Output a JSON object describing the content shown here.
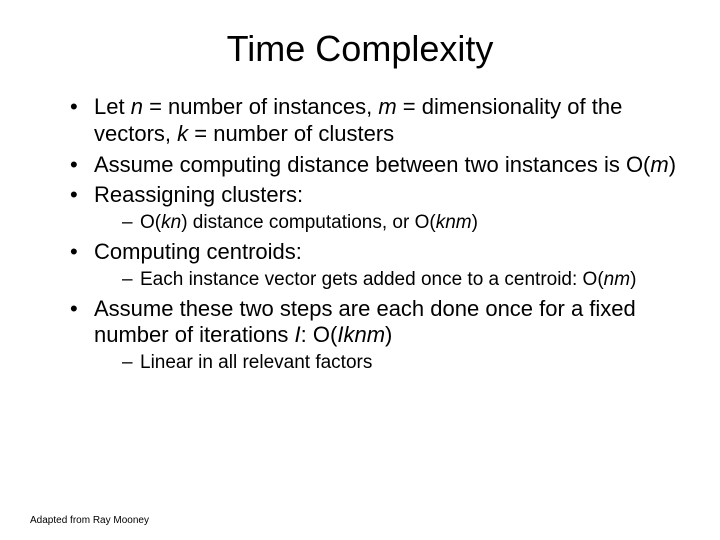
{
  "title": "Time Complexity",
  "bullets": [
    {
      "html": "Let <span class='italic'>n</span> = number of instances, <span class='italic'>m</span> = dimensionality of the vectors, <span class='italic'>k</span> = number of clusters"
    },
    {
      "html": "Assume computing distance between two instances is O(<span class='italic'>m</span>)"
    },
    {
      "html": "Reassigning clusters:",
      "sub": [
        {
          "html": "O(<span class='italic'>kn</span>) distance computations, or O(<span class='italic'>knm</span>)"
        }
      ]
    },
    {
      "html": "Computing centroids:",
      "sub": [
        {
          "html": "Each instance vector gets added once to a centroid: O(<span class='italic'>nm</span>)"
        }
      ]
    },
    {
      "html": "Assume these two steps are each done once for a fixed number of iterations <span class='italic'>I</span>: O(<span class='italic'>Iknm</span>)",
      "sub": [
        {
          "html": "Linear in all relevant factors"
        }
      ]
    }
  ],
  "footer": "Adapted from Ray Mooney"
}
